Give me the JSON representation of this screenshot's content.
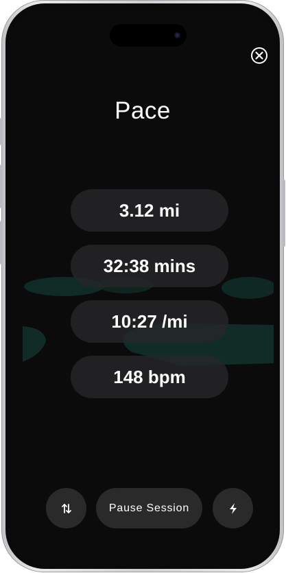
{
  "screen": {
    "title": "Pace"
  },
  "stats": [
    {
      "label": "3.12 mi"
    },
    {
      "label": "32:38 mins"
    },
    {
      "label": "10:27 /mi"
    },
    {
      "label": "148 bpm"
    }
  ],
  "controls": {
    "swap_icon": "swap-vertical-icon",
    "pause_label": "Pause Session",
    "bolt_icon": "lightning-bolt-icon",
    "close_icon": "close-circle-icon"
  },
  "colors": {
    "screen_bg": "#0b0b0c",
    "pill_bg": "#262628",
    "button_bg": "#2a2a2b",
    "map_tint": "#0f2a24"
  }
}
